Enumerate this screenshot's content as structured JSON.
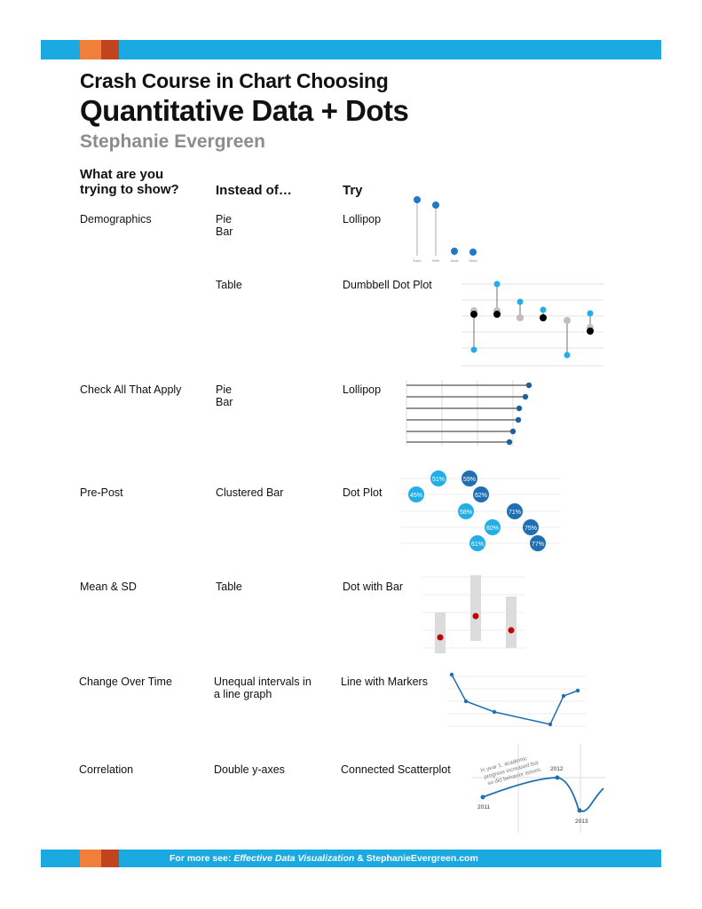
{
  "title": {
    "line1": "Crash Course in Chart Choosing",
    "line2": "Quantitative Data + Dots",
    "author": "Stephanie Evergreen"
  },
  "headers": {
    "col1_line1": "What are you",
    "col1_line2": "trying to show?",
    "col2": "Instead of…",
    "col3": "Try"
  },
  "rows": [
    {
      "show": "Demographics",
      "instead_line1": "Pie",
      "instead_line2": "Bar",
      "try": "Lollipop"
    },
    {
      "show": "",
      "instead_line1": "Table",
      "instead_line2": "",
      "try": "Dumbbell Dot Plot"
    },
    {
      "show": "Check All That Apply",
      "instead_line1": "Pie",
      "instead_line2": "Bar",
      "try": "Lollipop"
    },
    {
      "show": "Pre-Post",
      "instead_line1": "Clustered Bar",
      "instead_line2": "",
      "try": "Dot Plot"
    },
    {
      "show": "Mean & SD",
      "instead_line1": "Table",
      "instead_line2": "",
      "try": "Dot with Bar"
    },
    {
      "show": "Change Over Time",
      "instead_line1": "Unequal intervals in",
      "instead_line2": "a line graph",
      "try": "Line with Markers"
    },
    {
      "show": "Correlation",
      "instead_line1": "Double y-axes",
      "instead_line2": "",
      "try": "Connected Scatterplot"
    }
  ],
  "examples": {
    "lollipop_vertical": {
      "labels": [
        "Each",
        "With",
        "Axial",
        "Other"
      ]
    },
    "dot_plot": {
      "pre": [
        "45%",
        "58%",
        "60%",
        "61%"
      ],
      "post": [
        "59%",
        "62%",
        "71%",
        "75%",
        "77%"
      ],
      "top_label": "51%"
    },
    "scatterplot": {
      "annotation_line1": "In year 1, academic",
      "annotation_line2": "progress increased but",
      "annotation_line3": "so did behavior issues.",
      "year_start": "2011",
      "year_mid": "2012",
      "year_end": "2013"
    }
  },
  "footer": {
    "prefix": "For more see: ",
    "book": "Effective Data Visualization",
    "joiner": " & ",
    "site": "StephanieEvergreen.com"
  },
  "colors": {
    "brand_blue": "#1aa9e1",
    "brand_orange": "#f07f3a",
    "brand_rust": "#c1441e",
    "dark_blue": "#1f5f9c",
    "light_blue": "#22aee6",
    "gray": "#bfbfbf",
    "red": "#c00000"
  }
}
